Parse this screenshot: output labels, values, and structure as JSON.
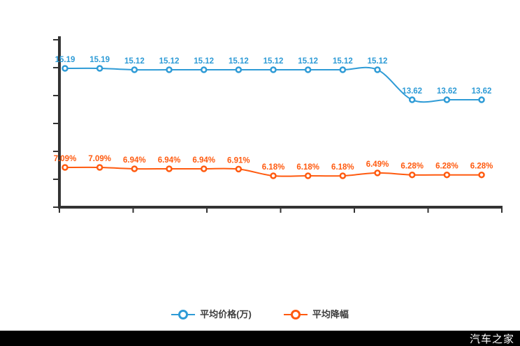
{
  "chart_data": {
    "type": "line",
    "title": "",
    "xlabel": "",
    "ylabel": "",
    "grid": false,
    "legend_position": "bottom",
    "axes": {
      "x_tick_count": 7,
      "y_tick_count": 7,
      "x_tick_labels_visible": false,
      "y_tick_labels_visible": false
    },
    "categories": [
      "",
      "",
      "",
      "",
      "",
      "",
      "",
      "",
      "",
      "",
      "",
      "",
      ""
    ],
    "series": [
      {
        "name": "平均价格(万)",
        "color": "#2e9bd6",
        "marker": "ring",
        "label_suffix": "",
        "values": [
          15.19,
          15.19,
          15.12,
          15.12,
          15.12,
          15.12,
          15.12,
          15.12,
          15.12,
          15.12,
          13.62,
          13.62,
          13.62
        ]
      },
      {
        "name": "平均降幅",
        "color": "#ff5a0f",
        "marker": "ring",
        "label_suffix": "%",
        "values": [
          7.09,
          7.09,
          6.94,
          6.94,
          6.94,
          6.91,
          6.18,
          6.18,
          6.18,
          6.49,
          6.28,
          6.28,
          6.28
        ]
      }
    ]
  },
  "footer": {
    "watermark": "汽车之家"
  }
}
